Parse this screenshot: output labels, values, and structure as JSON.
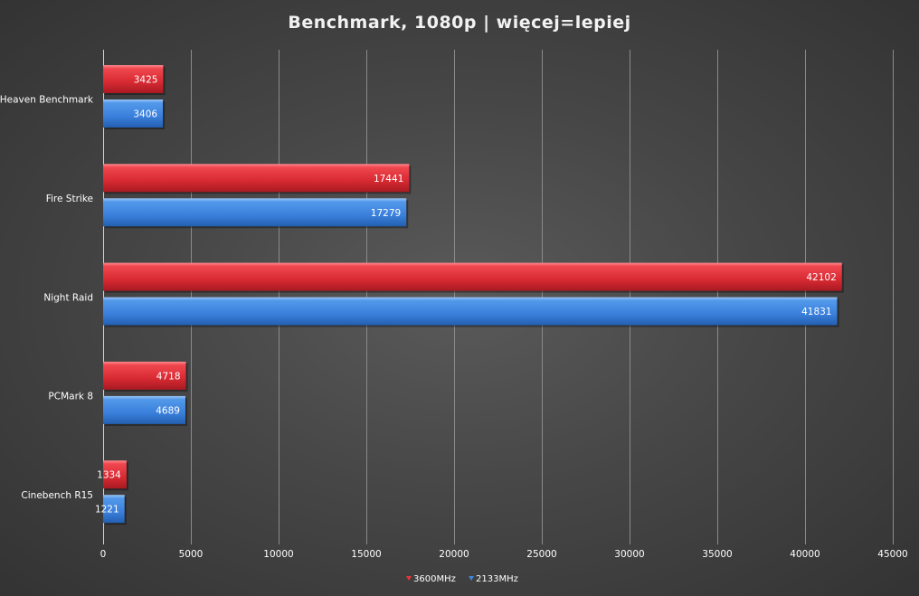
{
  "chart_data": {
    "type": "bar",
    "orientation": "horizontal",
    "title": "Benchmark, 1080p | więcej=lepiej",
    "categories": [
      "Heaven Benchmark",
      "Fire Strike",
      "Night Raid",
      "PCMark 8",
      "Cinebench R15"
    ],
    "series": [
      {
        "name": "3600MHz",
        "values": [
          3425,
          17441,
          42102,
          4718,
          1334
        ],
        "color": "#e8343c"
      },
      {
        "name": "2133MHz",
        "values": [
          3406,
          17279,
          41831,
          4689,
          1221
        ],
        "color": "#3f86e0"
      }
    ],
    "xlim": [
      0,
      45000
    ],
    "xticks": [
      0,
      5000,
      10000,
      15000,
      20000,
      25000,
      30000,
      35000,
      40000,
      45000
    ],
    "grid": true,
    "legend": "bottom",
    "data_labels": true
  }
}
